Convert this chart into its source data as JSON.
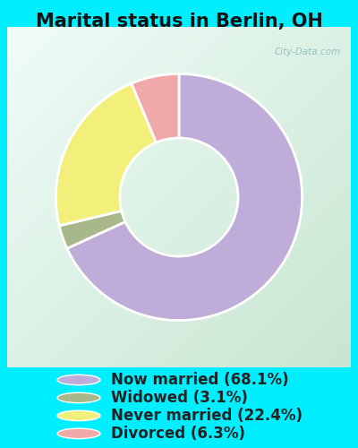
{
  "title": "Marital status in Berlin, OH",
  "slices": [
    68.1,
    3.1,
    22.4,
    6.3
  ],
  "labels": [
    "Now married (68.1%)",
    "Widowed (3.1%)",
    "Never married (22.4%)",
    "Divorced (6.3%)"
  ],
  "colors": [
    "#c0acd8",
    "#a8b88a",
    "#f2f07a",
    "#f0a8a8"
  ],
  "outer_bg": "#00eeff",
  "chart_bg_colors": [
    "#f0faf5",
    "#d0eedc"
  ],
  "title_fontsize": 15,
  "legend_fontsize": 12,
  "watermark": "City-Data.com",
  "donut_width": 0.52,
  "startangle": 90
}
